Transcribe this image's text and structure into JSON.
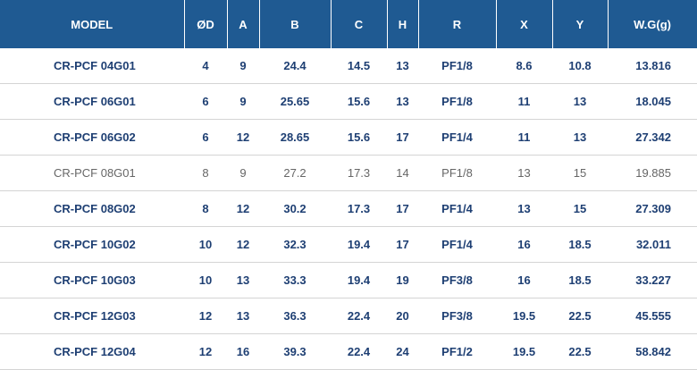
{
  "columns": [
    "MODEL",
    "ØD",
    "A",
    "B",
    "C",
    "H",
    "R",
    "X",
    "Y",
    "W.G(g)"
  ],
  "rows": [
    {
      "style": "bold",
      "cells": [
        "CR-PCF 04G01",
        "4",
        "9",
        "24.4",
        "14.5",
        "13",
        "PF1/8",
        "8.6",
        "10.8",
        "13.816"
      ]
    },
    {
      "style": "bold",
      "cells": [
        "CR-PCF 06G01",
        "6",
        "9",
        "25.65",
        "15.6",
        "13",
        "PF1/8",
        "11",
        "13",
        "18.045"
      ]
    },
    {
      "style": "bold",
      "cells": [
        "CR-PCF 06G02",
        "6",
        "12",
        "28.65",
        "15.6",
        "17",
        "PF1/4",
        "11",
        "13",
        "27.342"
      ]
    },
    {
      "style": "light",
      "cells": [
        "CR-PCF 08G01",
        "8",
        "9",
        "27.2",
        "17.3",
        "14",
        "PF1/8",
        "13",
        "15",
        "19.885"
      ]
    },
    {
      "style": "bold",
      "cells": [
        "CR-PCF 08G02",
        "8",
        "12",
        "30.2",
        "17.3",
        "17",
        "PF1/4",
        "13",
        "15",
        "27.309"
      ]
    },
    {
      "style": "bold",
      "cells": [
        "CR-PCF 10G02",
        "10",
        "12",
        "32.3",
        "19.4",
        "17",
        "PF1/4",
        "16",
        "18.5",
        "32.011"
      ]
    },
    {
      "style": "bold",
      "cells": [
        "CR-PCF 10G03",
        "10",
        "13",
        "33.3",
        "19.4",
        "19",
        "PF3/8",
        "16",
        "18.5",
        "33.227"
      ]
    },
    {
      "style": "bold",
      "cells": [
        "CR-PCF 12G03",
        "12",
        "13",
        "36.3",
        "22.4",
        "20",
        "PF3/8",
        "19.5",
        "22.5",
        "45.555"
      ]
    },
    {
      "style": "bold",
      "cells": [
        "CR-PCF 12G04",
        "12",
        "16",
        "39.3",
        "22.4",
        "24",
        "PF1/2",
        "19.5",
        "22.5",
        "58.842"
      ]
    }
  ],
  "colors": {
    "header_bg": "#1f5a92",
    "header_text": "#ffffff",
    "bold_text": "#1e3f73",
    "light_text": "#666666",
    "row_border": "#d4d4d4"
  }
}
